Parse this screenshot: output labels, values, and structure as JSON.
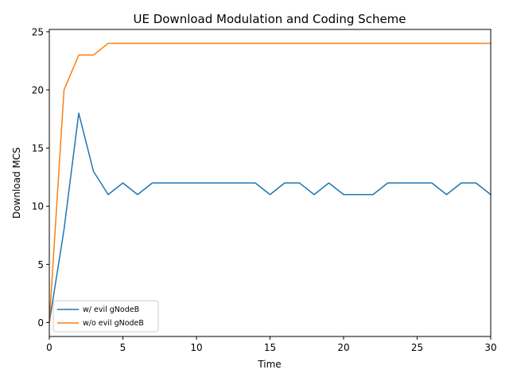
{
  "chart_data": {
    "type": "line",
    "title": "UE Download Modulation and Coding Scheme",
    "xlabel": "Time",
    "ylabel": "Download MCS",
    "xlim": [
      0,
      30
    ],
    "ylim": [
      -1.2,
      25.2
    ],
    "xticks": [
      0,
      5,
      10,
      15,
      20,
      25,
      30
    ],
    "yticks": [
      0,
      5,
      10,
      15,
      20,
      25
    ],
    "grid": false,
    "legend_position": "bottom-left",
    "x": [
      0,
      1,
      2,
      3,
      4,
      5,
      6,
      7,
      8,
      9,
      10,
      11,
      12,
      13,
      14,
      15,
      16,
      17,
      18,
      19,
      20,
      21,
      22,
      23,
      24,
      25,
      26,
      27,
      28,
      29,
      30
    ],
    "series": [
      {
        "name": "w/ evil gNodeB",
        "color": "#1f77b4",
        "values": [
          0,
          8,
          18,
          13,
          11,
          12,
          11,
          12,
          12,
          12,
          12,
          12,
          12,
          12,
          12,
          11,
          12,
          12,
          11,
          12,
          11,
          11,
          11,
          12,
          12,
          12,
          12,
          11,
          12,
          12,
          11
        ]
      },
      {
        "name": "w/o evil gNodeB",
        "color": "#ff7f0e",
        "values": [
          0,
          20,
          23,
          23,
          24,
          24,
          24,
          24,
          24,
          24,
          24,
          24,
          24,
          24,
          24,
          24,
          24,
          24,
          24,
          24,
          24,
          24,
          24,
          24,
          24,
          24,
          24,
          24,
          24,
          24,
          24
        ]
      }
    ]
  }
}
